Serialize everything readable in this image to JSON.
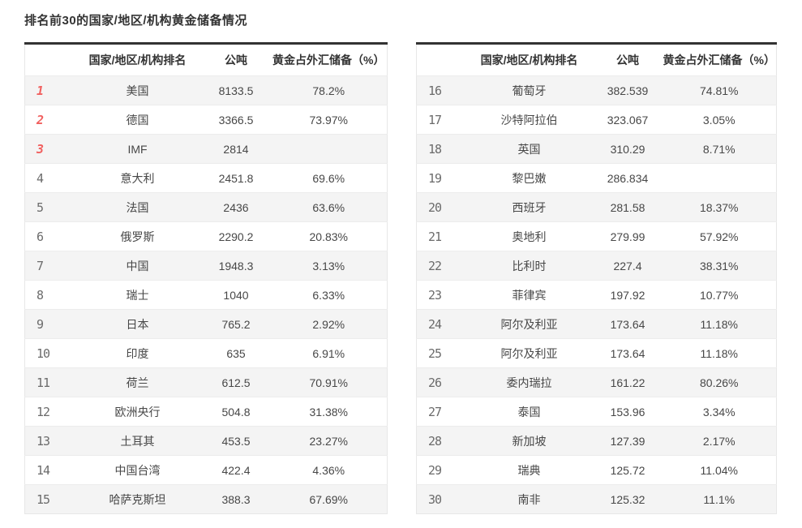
{
  "title": "排名前30的国家/地区/机构黄金储备情况",
  "columns": [
    "国家/地区/机构排名",
    "公吨",
    "黄金占外汇储备（%）"
  ],
  "colors": {
    "rank_top3": "#f1605f",
    "rank_default": "#6b6b6b",
    "table_top_border": "#333333",
    "row_alt_bg": "#f4f4f4",
    "text": "#474747"
  },
  "tables": [
    {
      "rows": [
        {
          "rank": "1",
          "name": "美国",
          "tons": "8133.5",
          "pct": "78.2%"
        },
        {
          "rank": "2",
          "name": "德国",
          "tons": "3366.5",
          "pct": "73.97%"
        },
        {
          "rank": "3",
          "name": "IMF",
          "tons": "2814",
          "pct": ""
        },
        {
          "rank": "4",
          "name": "意大利",
          "tons": "2451.8",
          "pct": "69.6%"
        },
        {
          "rank": "5",
          "name": "法国",
          "tons": "2436",
          "pct": "63.6%"
        },
        {
          "rank": "6",
          "name": "俄罗斯",
          "tons": "2290.2",
          "pct": "20.83%"
        },
        {
          "rank": "7",
          "name": "中国",
          "tons": "1948.3",
          "pct": "3.13%"
        },
        {
          "rank": "8",
          "name": "瑞士",
          "tons": "1040",
          "pct": "6.33%"
        },
        {
          "rank": "9",
          "name": "日本",
          "tons": "765.2",
          "pct": "2.92%"
        },
        {
          "rank": "10",
          "name": "印度",
          "tons": "635",
          "pct": "6.91%"
        },
        {
          "rank": "11",
          "name": "荷兰",
          "tons": "612.5",
          "pct": "70.91%"
        },
        {
          "rank": "12",
          "name": "欧洲央行",
          "tons": "504.8",
          "pct": "31.38%"
        },
        {
          "rank": "13",
          "name": "土耳其",
          "tons": "453.5",
          "pct": "23.27%"
        },
        {
          "rank": "14",
          "name": "中国台湾",
          "tons": "422.4",
          "pct": "4.36%"
        },
        {
          "rank": "15",
          "name": "哈萨克斯坦",
          "tons": "388.3",
          "pct": "67.69%"
        }
      ]
    },
    {
      "rows": [
        {
          "rank": "16",
          "name": "葡萄牙",
          "tons": "382.539",
          "pct": "74.81%"
        },
        {
          "rank": "17",
          "name": "沙特阿拉伯",
          "tons": "323.067",
          "pct": "3.05%"
        },
        {
          "rank": "18",
          "name": "英国",
          "tons": "310.29",
          "pct": "8.71%"
        },
        {
          "rank": "19",
          "name": "黎巴嫩",
          "tons": "286.834",
          "pct": ""
        },
        {
          "rank": "20",
          "name": "西班牙",
          "tons": "281.58",
          "pct": "18.37%"
        },
        {
          "rank": "21",
          "name": "奥地利",
          "tons": "279.99",
          "pct": "57.92%"
        },
        {
          "rank": "22",
          "name": "比利时",
          "tons": "227.4",
          "pct": "38.31%"
        },
        {
          "rank": "23",
          "name": "菲律宾",
          "tons": "197.92",
          "pct": "10.77%"
        },
        {
          "rank": "24",
          "name": "阿尔及利亚",
          "tons": "173.64",
          "pct": "11.18%"
        },
        {
          "rank": "25",
          "name": "阿尔及利亚",
          "tons": "173.64",
          "pct": "11.18%"
        },
        {
          "rank": "26",
          "name": "委内瑞拉",
          "tons": "161.22",
          "pct": "80.26%"
        },
        {
          "rank": "27",
          "name": "泰国",
          "tons": "153.96",
          "pct": "3.34%"
        },
        {
          "rank": "28",
          "name": "新加坡",
          "tons": "127.39",
          "pct": "2.17%"
        },
        {
          "rank": "29",
          "name": "瑞典",
          "tons": "125.72",
          "pct": "11.04%"
        },
        {
          "rank": "30",
          "name": "南非",
          "tons": "125.32",
          "pct": "11.1%"
        }
      ]
    }
  ],
  "chart_data": {
    "type": "table",
    "title": "排名前30的国家/地区/机构黄金储备情况",
    "columns": [
      "排名",
      "国家/地区/机构",
      "公吨",
      "黄金占外汇储备（%）"
    ],
    "rows": [
      [
        1,
        "美国",
        8133.5,
        "78.2%"
      ],
      [
        2,
        "德国",
        3366.5,
        "73.97%"
      ],
      [
        3,
        "IMF",
        2814,
        null
      ],
      [
        4,
        "意大利",
        2451.8,
        "69.6%"
      ],
      [
        5,
        "法国",
        2436,
        "63.6%"
      ],
      [
        6,
        "俄罗斯",
        2290.2,
        "20.83%"
      ],
      [
        7,
        "中国",
        1948.3,
        "3.13%"
      ],
      [
        8,
        "瑞士",
        1040,
        "6.33%"
      ],
      [
        9,
        "日本",
        765.2,
        "2.92%"
      ],
      [
        10,
        "印度",
        635,
        "6.91%"
      ],
      [
        11,
        "荷兰",
        612.5,
        "70.91%"
      ],
      [
        12,
        "欧洲央行",
        504.8,
        "31.38%"
      ],
      [
        13,
        "土耳其",
        453.5,
        "23.27%"
      ],
      [
        14,
        "中国台湾",
        422.4,
        "4.36%"
      ],
      [
        15,
        "哈萨克斯坦",
        388.3,
        "67.69%"
      ],
      [
        16,
        "葡萄牙",
        382.539,
        "74.81%"
      ],
      [
        17,
        "沙特阿拉伯",
        323.067,
        "3.05%"
      ],
      [
        18,
        "英国",
        310.29,
        "8.71%"
      ],
      [
        19,
        "黎巴嫩",
        286.834,
        null
      ],
      [
        20,
        "西班牙",
        281.58,
        "18.37%"
      ],
      [
        21,
        "奥地利",
        279.99,
        "57.92%"
      ],
      [
        22,
        "比利时",
        227.4,
        "38.31%"
      ],
      [
        23,
        "菲律宾",
        197.92,
        "10.77%"
      ],
      [
        24,
        "阿尔及利亚",
        173.64,
        "11.18%"
      ],
      [
        25,
        "阿尔及利亚",
        173.64,
        "11.18%"
      ],
      [
        26,
        "委内瑞拉",
        161.22,
        "80.26%"
      ],
      [
        27,
        "泰国",
        153.96,
        "3.34%"
      ],
      [
        28,
        "新加坡",
        127.39,
        "2.17%"
      ],
      [
        29,
        "瑞典",
        125.72,
        "11.04%"
      ],
      [
        30,
        "南非",
        125.32,
        "11.1%"
      ]
    ]
  }
}
